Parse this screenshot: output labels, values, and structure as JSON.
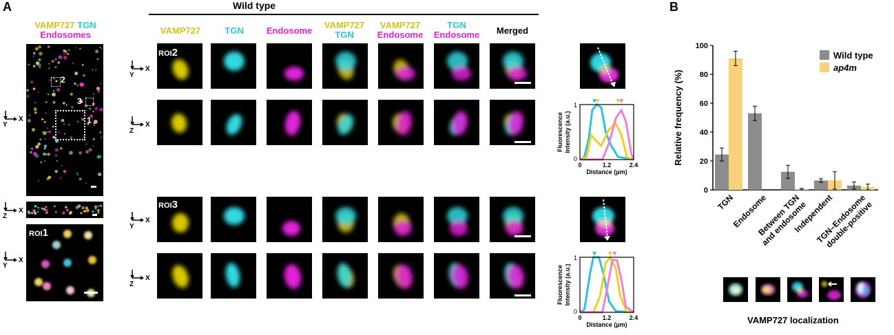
{
  "panel_a": {
    "letter": "A",
    "title": "Wild type",
    "overview_label": {
      "part1": "VAMP727",
      "part2": "TGN",
      "part3": "Endosomes"
    },
    "roi_numbers": [
      "2",
      "3",
      "1"
    ],
    "roi_prefix": "ROI",
    "roi_labels": [
      "1",
      "2",
      "3"
    ],
    "column_headers": [
      {
        "line1": "VAMP727",
        "line2": "",
        "c1": "#d4c21a",
        "c2": ""
      },
      {
        "line1": "TGN",
        "line2": "",
        "c1": "#2bc7d6",
        "c2": ""
      },
      {
        "line1": "Endosome",
        "line2": "",
        "c1": "#e020d8",
        "c2": ""
      },
      {
        "line1": "VAMP727",
        "line2": "TGN",
        "c1": "#d4c21a",
        "c2": "#2bc7d6"
      },
      {
        "line1": "VAMP727",
        "line2": "Endosome",
        "c1": "#d4c21a",
        "c2": "#e020d8"
      },
      {
        "line1": "TGN",
        "line2": "Endosome",
        "c1": "#2bc7d6",
        "c2": "#e020d8"
      },
      {
        "line1": "Merged",
        "line2": "",
        "c1": "#000000",
        "c2": ""
      }
    ],
    "axis_x": "X",
    "axis_y": "Y",
    "axis_z": "Z",
    "profile_plots": [
      {
        "ylabel_line1": "Fluorescence",
        "ylabel_line2": "Intensity (a.u.)",
        "xlabel": "Distance (µm)",
        "yticks": [
          "0",
          "1"
        ],
        "xticks": [
          "0",
          "1.2",
          "2.4"
        ]
      },
      {
        "ylabel_line1": "Fluorescence",
        "ylabel_line2": "Intensity (a.u.)",
        "xlabel": "Distance (µm)",
        "yticks": [
          "0",
          "1"
        ],
        "xticks": [
          "0",
          "1.2",
          "2.4"
        ]
      }
    ]
  },
  "panel_b": {
    "letter": "B",
    "caption": "VAMP727 localization"
  },
  "chart_data": {
    "type": "bar",
    "ylabel": "Relative frequency (%)",
    "ylim": [
      0,
      100
    ],
    "yticks": [
      "0",
      "20",
      "40",
      "60",
      "80",
      "100"
    ],
    "categories": [
      "TGN",
      "Endosome",
      "Between TGN and endosome",
      "Independent",
      "TGN–Endosome double-positive"
    ],
    "category_lines": [
      [
        "TGN"
      ],
      [
        "Endosome"
      ],
      [
        "Between TGN",
        "and endosome"
      ],
      [
        "Independent"
      ],
      [
        "TGN–Endosome",
        "double-positive"
      ]
    ],
    "series": [
      {
        "name": "Wild type",
        "color": "#8c8c8c",
        "values": [
          24.5,
          53,
          12.5,
          6.5,
          3
        ],
        "errors": [
          4.5,
          5,
          4.5,
          1.2,
          2.5
        ]
      },
      {
        "name": "ap4m",
        "color": "#f8d27a",
        "values": [
          91,
          0,
          0.5,
          6.5,
          2
        ],
        "errors": [
          5,
          0,
          0.5,
          6,
          2
        ]
      }
    ],
    "legend_position": "top-right",
    "extra_error": {
      "category_index": 2,
      "value": 0.8,
      "error": 0.6
    }
  }
}
